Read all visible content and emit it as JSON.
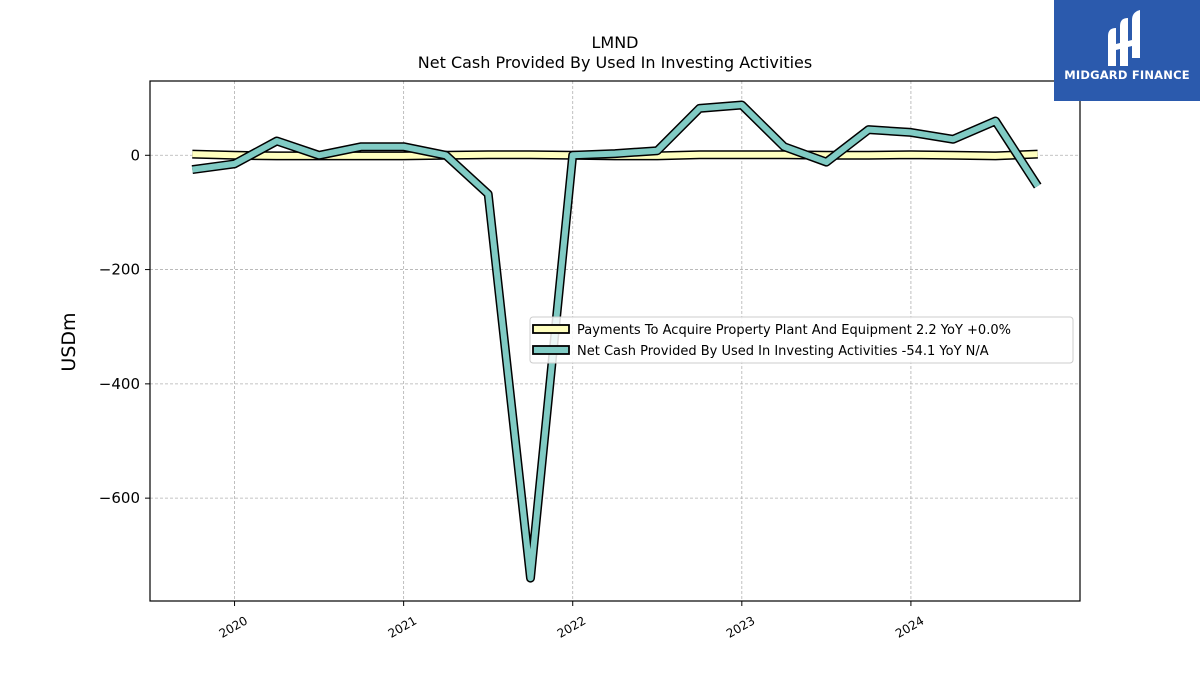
{
  "chart_data": {
    "type": "line",
    "title": "LMND",
    "subtitle": "Net Cash Provided By Used In Investing Activities",
    "ylabel": "USDm",
    "xlabel": "",
    "ylim": [
      -780,
      130
    ],
    "xlim": [
      2019.5,
      2025.0
    ],
    "yticks": [
      0,
      -200,
      -400,
      -600
    ],
    "ytick_labels": [
      "0",
      "−200",
      "−400",
      "−600"
    ],
    "xticks": [
      2020,
      2021,
      2022,
      2023,
      2024
    ],
    "xtick_labels": [
      "2020",
      "2021",
      "2022",
      "2023",
      "2024"
    ],
    "grid": true,
    "legend_position": "center-right",
    "series": [
      {
        "name": "Payments To Acquire Property Plant And Equipment",
        "legend_label": "Payments To Acquire Property Plant And Equipment  2.2 YoY +0.0%",
        "color": "#ffffbf",
        "x": [
          2019.75,
          2020.0,
          2020.25,
          2020.5,
          2020.75,
          2021.0,
          2021.25,
          2021.5,
          2021.75,
          2022.0,
          2022.25,
          2022.5,
          2022.75,
          2023.0,
          2023.25,
          2023.5,
          2023.75,
          2024.0,
          2024.25,
          2024.5,
          2024.75
        ],
        "values": [
          2,
          0,
          -1,
          -1,
          -1,
          -1,
          0,
          1,
          1,
          0,
          -1,
          -1,
          1,
          1,
          1,
          0,
          0,
          1,
          0,
          -1,
          2
        ]
      },
      {
        "name": "Net Cash Provided By Used In Investing Activities",
        "legend_label": "Net Cash Provided By Used In Investing Activities  -54.1 YoY N/A",
        "color": "#80cbc4",
        "x": [
          2019.75,
          2020.0,
          2020.25,
          2020.5,
          2020.75,
          2021.0,
          2021.25,
          2021.5,
          2021.75,
          2022.0,
          2022.25,
          2022.5,
          2022.75,
          2023.0,
          2023.25,
          2023.5,
          2023.75,
          2024.0,
          2024.25,
          2024.5,
          2024.75
        ],
        "values": [
          -25,
          -15,
          25,
          0,
          15,
          15,
          0,
          -68,
          -740,
          0,
          3,
          8,
          82,
          88,
          15,
          -12,
          45,
          40,
          28,
          60,
          -54
        ]
      }
    ]
  },
  "branding": {
    "logo_text": "MIDGARD FINANCE",
    "logo_icon": "midgard-logo-icon",
    "background_color": "#2b5aad"
  }
}
